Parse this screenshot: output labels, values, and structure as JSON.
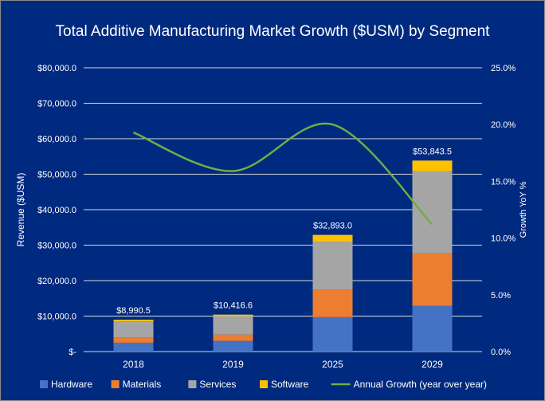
{
  "chart_data": {
    "type": "bar",
    "title": "Total Additive Manufacturing Market Growth ($USM) by Segment",
    "categories": [
      "2018",
      "2019",
      "2025",
      "2029"
    ],
    "series": [
      {
        "name": "Hardware",
        "color": "#4472C4",
        "values": [
          2500,
          3000,
          9700,
          12900
        ]
      },
      {
        "name": "Materials",
        "color": "#ED7D31",
        "values": [
          1500,
          1800,
          7800,
          14800
        ]
      },
      {
        "name": "Services",
        "color": "#A5A5A5",
        "values": [
          4500,
          5200,
          13500,
          23100
        ]
      },
      {
        "name": "Software",
        "color": "#FFC000",
        "values": [
          490,
          417,
          1893,
          3044
        ]
      }
    ],
    "totals": [
      "$8,990.5",
      "$10,416.6",
      "$32,893.0",
      "$53,843.5"
    ],
    "line_series": {
      "name": "Annual Growth (year over year)",
      "color": "#70AD47",
      "values": [
        19.3,
        15.9,
        20.0,
        11.2
      ],
      "axis": "right"
    },
    "ylabel": "Revenue ($USM)",
    "ylabel_right": "Growth YoY %",
    "ylim": [
      0,
      80000
    ],
    "ylim_right": [
      0,
      25
    ],
    "yticks": [
      "$-",
      "$10,000.0",
      "$20,000.0",
      "$30,000.0",
      "$40,000.0",
      "$50,000.0",
      "$60,000.0",
      "$70,000.0",
      "$80,000.0"
    ],
    "yticks_right": [
      "0.0%",
      "5.0%",
      "10.0%",
      "15.0%",
      "20.0%",
      "25.0%"
    ],
    "grid": true,
    "legend": "bottom",
    "background": "#002A7F"
  }
}
